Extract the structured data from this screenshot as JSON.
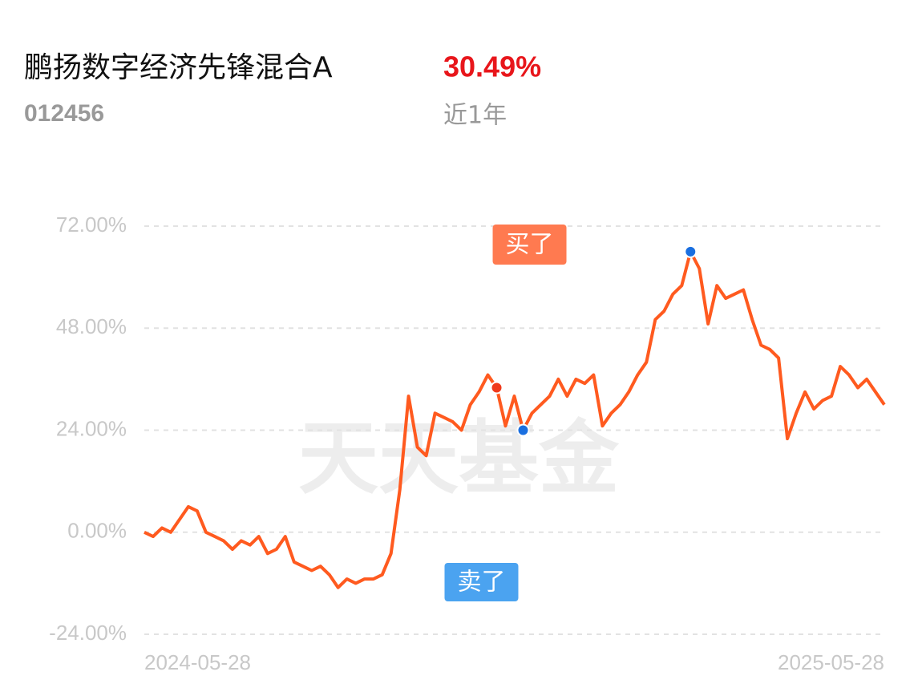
{
  "chart_data": {
    "type": "line",
    "title": "鹏扬数字经济先锋混合A",
    "return_label": "30.49%",
    "code": "012456",
    "period": "近1年",
    "watermark": "天天基金",
    "categories": [
      "2024-05-28",
      null,
      null,
      null,
      null,
      null,
      null,
      null,
      null,
      null,
      null,
      null,
      null,
      null,
      null,
      null,
      null,
      null,
      null,
      null,
      null,
      null,
      null,
      null,
      null,
      null,
      null,
      null,
      null,
      null,
      null,
      null,
      null,
      null,
      null,
      null,
      null,
      null,
      null,
      null,
      null,
      null,
      null,
      null,
      null,
      null,
      null,
      null,
      null,
      null,
      null,
      null,
      null,
      null,
      null,
      null,
      null,
      null,
      null,
      null,
      null,
      null,
      null,
      null,
      null,
      null,
      null,
      null,
      null,
      null,
      null,
      null,
      null,
      null,
      null,
      null,
      null,
      null,
      null,
      null,
      null,
      null,
      null,
      null,
      "2025-05-28"
    ],
    "series": [
      {
        "color": "#ff5a1f",
        "values": [
          0,
          -1,
          1,
          0,
          3,
          6,
          5,
          0,
          -1,
          -2,
          -4,
          -2,
          -3,
          -1,
          -5,
          -4,
          -1,
          -7,
          -8,
          -9,
          -8,
          -10,
          -13,
          -11,
          -12,
          -11,
          -11,
          -10,
          -5,
          10,
          32,
          20,
          18,
          28,
          27,
          26,
          24,
          30,
          33,
          37,
          34,
          25,
          32,
          24,
          28,
          30,
          32,
          36,
          32,
          36,
          35,
          37,
          25,
          28,
          30,
          33,
          37,
          40,
          50,
          52,
          56,
          58,
          66,
          62,
          49,
          58,
          55,
          56,
          57,
          50,
          44,
          43,
          41,
          22,
          28,
          33,
          29,
          31,
          32,
          39,
          37,
          34,
          36,
          33,
          30
        ]
      }
    ],
    "annotations": [
      {
        "text": "买了",
        "color": "#ff7a50"
      },
      {
        "text": "卖了",
        "color": "#4ba3f0"
      }
    ],
    "ylim": [
      -24,
      72
    ],
    "yticks": [
      {
        "value": -24,
        "label": "-24.00%"
      },
      {
        "value": 0,
        "label": "0.00%"
      },
      {
        "value": 24,
        "label": "24.00%"
      },
      {
        "value": 48,
        "label": "48.00%"
      },
      {
        "value": 72,
        "label": "72.00%"
      }
    ],
    "grid": true
  }
}
